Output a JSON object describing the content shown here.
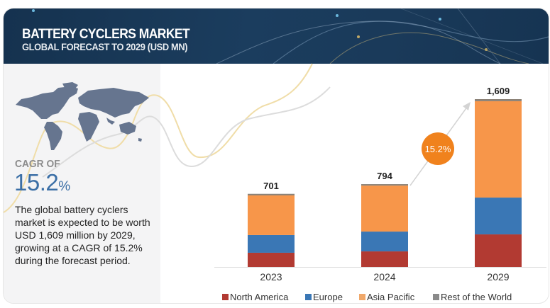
{
  "header": {
    "title": "BATTERY CYCLERS MARKET",
    "subtitle": "GLOBAL FORECAST TO 2029 (USD MN)"
  },
  "summary": {
    "cagr_label": "CAGR OF",
    "cagr_number": "15.2",
    "cagr_percent_sign": "%",
    "description": "The global battery cyclers market is expected to be worth USD 1,609 million by 2029, growing at a CAGR of 15.2% during the forecast period.",
    "map_icon": "world-map-icon"
  },
  "colors": {
    "north_america": "#b23a32",
    "europe": "#3a77b5",
    "asia_pacific": "#f7964a",
    "rest_of_world": "#8c8277",
    "badge": "#f0821d",
    "header_bg": "#15324f",
    "cagr_blue": "#3b6fa6"
  },
  "chart_data": {
    "type": "bar",
    "stacked": true,
    "title": "BATTERY CYCLERS MARKET GLOBAL FORECAST TO 2029 (USD MN)",
    "categories": [
      "2023",
      "2024",
      "2029"
    ],
    "totals": [
      "701",
      "794",
      "1,609"
    ],
    "total_values": [
      701,
      794,
      1609
    ],
    "series": [
      {
        "name": "North America",
        "values": [
          136,
          149,
          312
        ]
      },
      {
        "name": "Europe",
        "values": [
          170,
          190,
          353
        ]
      },
      {
        "name": "Asia Pacific",
        "values": [
          380,
          441,
          924
        ]
      },
      {
        "name": "Rest of the World",
        "values": [
          15,
          14,
          20
        ]
      }
    ],
    "ylim": [
      0,
      1609
    ],
    "grid": false,
    "legend_position": "bottom",
    "annotation": "15.2%"
  }
}
